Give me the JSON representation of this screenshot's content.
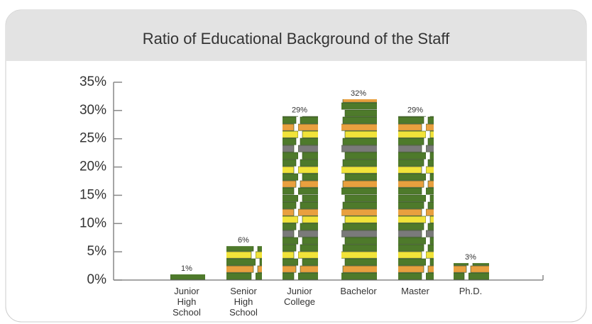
{
  "chart_data": {
    "type": "bar",
    "title": "Ratio of Educational Background of the Staff",
    "categories": [
      "Junior High School",
      "Senior High School",
      "Junior College",
      "Bachelor",
      "Master",
      "Ph.D."
    ],
    "values": [
      1,
      6,
      29,
      32,
      29,
      3
    ],
    "value_labels": [
      "1%",
      "6%",
      "29%",
      "32%",
      "29%",
      "3%"
    ],
    "colors": [
      "#4e7a2b",
      "#e9a03f",
      "#f1e33a",
      "#7a7a7a"
    ],
    "ylim": [
      0,
      35
    ],
    "yticks": [
      {
        "value": 0,
        "label": "0%"
      },
      {
        "value": 5,
        "label": "5%"
      },
      {
        "value": 10,
        "label": "10%"
      },
      {
        "value": 15,
        "label": "15%"
      },
      {
        "value": 20,
        "label": "20%"
      },
      {
        "value": 25,
        "label": "25%"
      },
      {
        "value": 30,
        "label": "30%"
      },
      {
        "value": 35,
        "label": "35%"
      }
    ]
  }
}
